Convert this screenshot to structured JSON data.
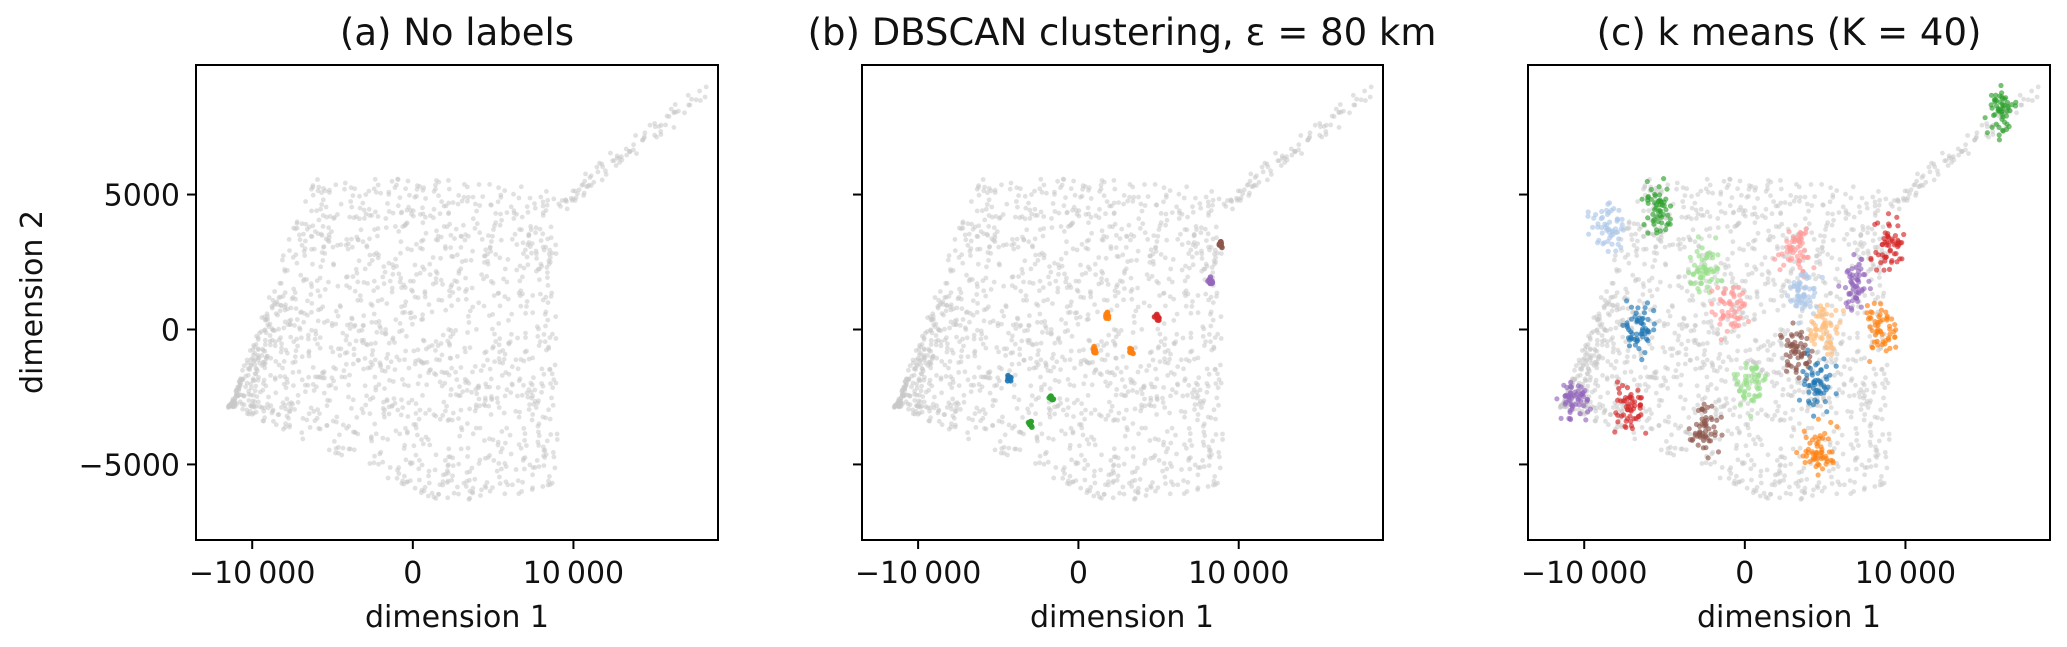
{
  "chart_data": [
    {
      "type": "scatter",
      "title": "(a) No labels",
      "xlabel": "dimension 1",
      "ylabel": "dimension 2",
      "xlim": [
        -13500,
        19000
      ],
      "ylim": [
        -7800,
        9800
      ],
      "xticks": [
        {
          "value": -10000,
          "label": "−10 000"
        },
        {
          "value": 0,
          "label": "0"
        },
        {
          "value": 10000,
          "label": "10 000"
        }
      ],
      "yticks": [
        {
          "value": 5000,
          "label": "5000"
        },
        {
          "value": 0,
          "label": "0"
        },
        {
          "value": -5000,
          "label": "−5000"
        }
      ],
      "series": [
        {
          "color": "#c8c8c8",
          "points": "background cloud (all points unlabeled)"
        }
      ]
    },
    {
      "type": "scatter",
      "title": "(b) DBSCAN clustering, ε = 80 km",
      "xlabel": "dimension 1",
      "ylabel": "",
      "xlim": [
        -13500,
        19000
      ],
      "ylim": [
        -7800,
        9800
      ],
      "xticks": [
        {
          "value": -10000,
          "label": "−10 000"
        },
        {
          "value": 0,
          "label": "0"
        },
        {
          "value": 10000,
          "label": "10 000"
        }
      ],
      "yticks": [
        {
          "value": 5000,
          "label": ""
        },
        {
          "value": 0,
          "label": ""
        },
        {
          "value": -5000,
          "label": ""
        }
      ],
      "clusters": [
        {
          "color": "#8c564b",
          "x": 8900,
          "y": 3200
        },
        {
          "color": "#9467bd",
          "x": 8200,
          "y": 1800
        },
        {
          "color": "#ff7f0e",
          "x": 1800,
          "y": 500
        },
        {
          "color": "#d62728",
          "x": 4900,
          "y": 500
        },
        {
          "color": "#ff7f0e",
          "x": 1000,
          "y": -800
        },
        {
          "color": "#ff7f0e",
          "x": 3300,
          "y": -800
        },
        {
          "color": "#1f77b4",
          "x": -4300,
          "y": -1800
        },
        {
          "color": "#2ca02c",
          "x": -1700,
          "y": -2500
        },
        {
          "color": "#2ca02c",
          "x": -3000,
          "y": -3500
        }
      ]
    },
    {
      "type": "scatter",
      "title": "(c) k means (K = 40)",
      "xlabel": "dimension 1",
      "ylabel": "",
      "xlim": [
        -13500,
        19000
      ],
      "ylim": [
        -7800,
        9800
      ],
      "xticks": [
        {
          "value": -10000,
          "label": "−10 000"
        },
        {
          "value": 0,
          "label": "0"
        },
        {
          "value": 10000,
          "label": "10 000"
        }
      ],
      "yticks": [
        {
          "value": 5000,
          "label": ""
        },
        {
          "value": 0,
          "label": ""
        },
        {
          "value": -5000,
          "label": ""
        }
      ],
      "clusters": [
        {
          "color": "#2ca02c",
          "x": -5500,
          "y": 4500
        },
        {
          "color": "#aec7e8",
          "x": -8500,
          "y": 3800
        },
        {
          "color": "#98df8a",
          "x": -2500,
          "y": 2200
        },
        {
          "color": "#ff9896",
          "x": 3200,
          "y": 3000
        },
        {
          "color": "#d62728",
          "x": 9000,
          "y": 3200
        },
        {
          "color": "#9467bd",
          "x": 7000,
          "y": 1700
        },
        {
          "color": "#aec7e8",
          "x": 3500,
          "y": 1300
        },
        {
          "color": "#ff9896",
          "x": -1000,
          "y": 800
        },
        {
          "color": "#1f77b4",
          "x": -6500,
          "y": 0
        },
        {
          "color": "#ffbb78",
          "x": 5000,
          "y": 0
        },
        {
          "color": "#ff7f0e",
          "x": 8500,
          "y": 0
        },
        {
          "color": "#8c564b",
          "x": 3200,
          "y": -800
        },
        {
          "color": "#98df8a",
          "x": 500,
          "y": -2000
        },
        {
          "color": "#1f77b4",
          "x": 4500,
          "y": -2000
        },
        {
          "color": "#d62728",
          "x": -7200,
          "y": -2900
        },
        {
          "color": "#9467bd",
          "x": -10500,
          "y": -2600
        },
        {
          "color": "#8c564b",
          "x": -2500,
          "y": -3700
        },
        {
          "color": "#ff7f0e",
          "x": 4500,
          "y": -4400
        },
        {
          "color": "#2ca02c",
          "x": 16000,
          "y": 8000
        }
      ]
    }
  ]
}
